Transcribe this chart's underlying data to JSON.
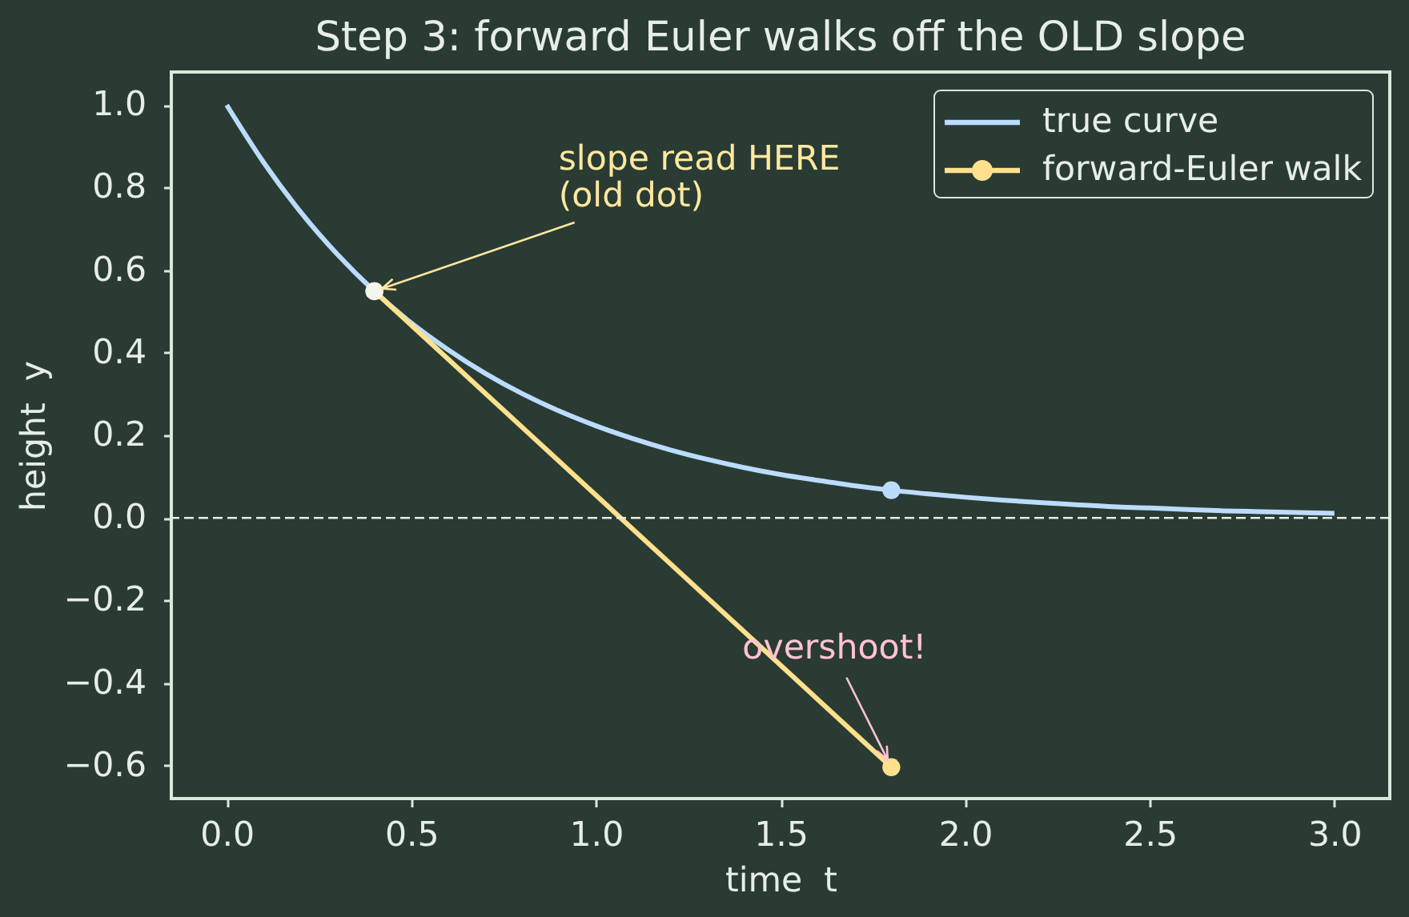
{
  "chart_data": {
    "type": "line",
    "title": "Step 3: forward Euler walks off the OLD slope",
    "xlabel": "time  t",
    "ylabel": "height  y",
    "series": [
      {
        "name": "true curve",
        "color": "#bcdcff",
        "x": [
          0,
          0.1,
          0.2,
          0.3,
          0.4,
          0.5,
          0.6,
          0.7,
          0.8,
          0.9,
          1.0,
          1.1,
          1.2,
          1.3,
          1.4,
          1.5,
          1.6,
          1.7,
          1.8,
          1.9,
          2.0,
          2.1,
          2.2,
          2.3,
          2.4,
          2.5,
          2.6,
          2.7,
          2.8,
          2.9,
          3.0
        ],
        "values": [
          1.0,
          0.861,
          0.741,
          0.638,
          0.549,
          0.472,
          0.407,
          0.35,
          0.301,
          0.259,
          0.223,
          0.192,
          0.165,
          0.142,
          0.122,
          0.105,
          0.091,
          0.078,
          0.067,
          0.058,
          0.05,
          0.043,
          0.037,
          0.032,
          0.027,
          0.024,
          0.02,
          0.017,
          0.015,
          0.013,
          0.011
        ]
      },
      {
        "name": "forward-Euler walk",
        "color": "#ffe08c",
        "x": [
          0.4,
          1.8
        ],
        "values": [
          0.549,
          -0.604
        ],
        "marker": "circle"
      },
      {
        "type": "scatter",
        "color": "#f4f4ec",
        "x": [
          0.4
        ],
        "values": [
          0.549
        ]
      },
      {
        "type": "scatter",
        "color": "#bcdcff",
        "x": [
          1.8
        ],
        "values": [
          0.067
        ]
      }
    ],
    "xlim": [
      -0.15,
      3.15
    ],
    "ylim": [
      -0.68,
      1.08
    ],
    "xticks": [
      {
        "value": 0,
        "label": "0.0"
      },
      {
        "value": 0.5,
        "label": "0.5"
      },
      {
        "value": 1,
        "label": "1.0"
      },
      {
        "value": 1.5,
        "label": "1.5"
      },
      {
        "value": 2,
        "label": "2.0"
      },
      {
        "value": 2.5,
        "label": "2.5"
      },
      {
        "value": 3,
        "label": "3.0"
      }
    ],
    "yticks": [
      {
        "value": -0.6,
        "label": "−0.6"
      },
      {
        "value": -0.4,
        "label": "−0.4"
      },
      {
        "value": -0.2,
        "label": "−0.2"
      },
      {
        "value": 0,
        "label": "0.0"
      },
      {
        "value": 0.2,
        "label": "0.2"
      },
      {
        "value": 0.4,
        "label": "0.4"
      },
      {
        "value": 0.6,
        "label": "0.6"
      },
      {
        "value": 0.8,
        "label": "0.8"
      },
      {
        "value": 1,
        "label": "1.0"
      }
    ],
    "ref_lines": [
      {
        "axis": "y",
        "value": 0,
        "color": "#e6eee6",
        "line_style": "dashed"
      }
    ],
    "annotations": [
      {
        "text": "slope read HERE\n(old dot)",
        "x": 0.4,
        "y": 0.549
      },
      {
        "text": "overshoot!",
        "x": 1.8,
        "y": -0.604
      }
    ],
    "legend": "top right"
  }
}
